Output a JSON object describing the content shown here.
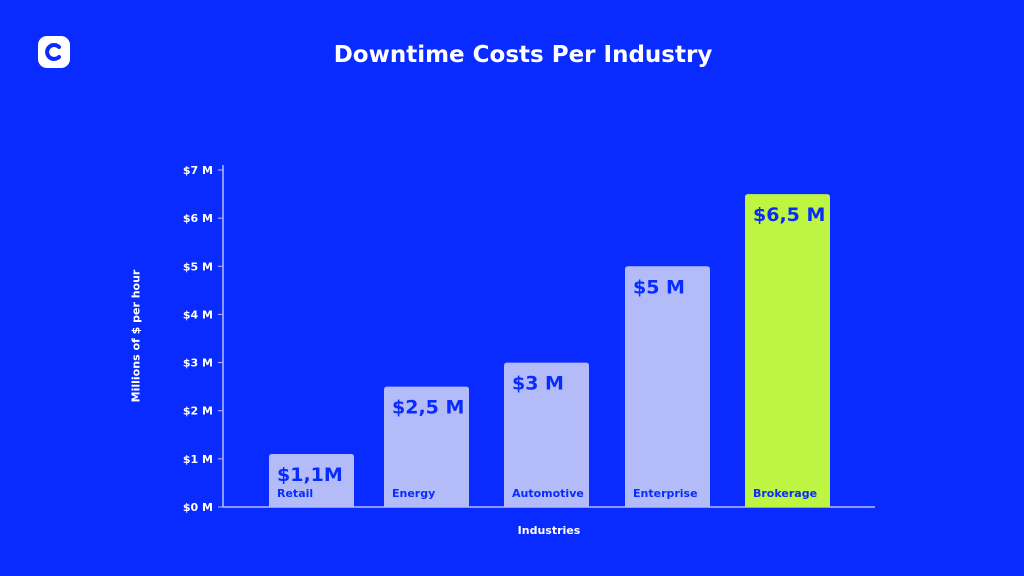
{
  "chart_data": {
    "type": "bar",
    "title": "Downtime Costs Per Industry",
    "xlabel": "Industries",
    "ylabel": "Millions of $ per hour",
    "categories": [
      "Retail",
      "Energy",
      "Automotive",
      "Enterprise",
      "Brokerage"
    ],
    "values": [
      1.1,
      2.5,
      3,
      5,
      6.5
    ],
    "data_labels": [
      "$1,1M",
      "$2,5 M",
      "$3 M",
      "$5 M",
      "$6,5 M"
    ],
    "ylim": [
      0,
      7
    ],
    "yticks": [
      "$0 M",
      "$1 M",
      "$2 M",
      "$3 M",
      "$4 M",
      "$5 M",
      "$6 M",
      "$7 M"
    ],
    "grid": false,
    "colors": {
      "background": "#0a2bff",
      "bar": "#b3bcf8",
      "highlight": "#bdf542",
      "bar_text": "#0a2bff"
    },
    "highlight_category": "Brokerage"
  }
}
